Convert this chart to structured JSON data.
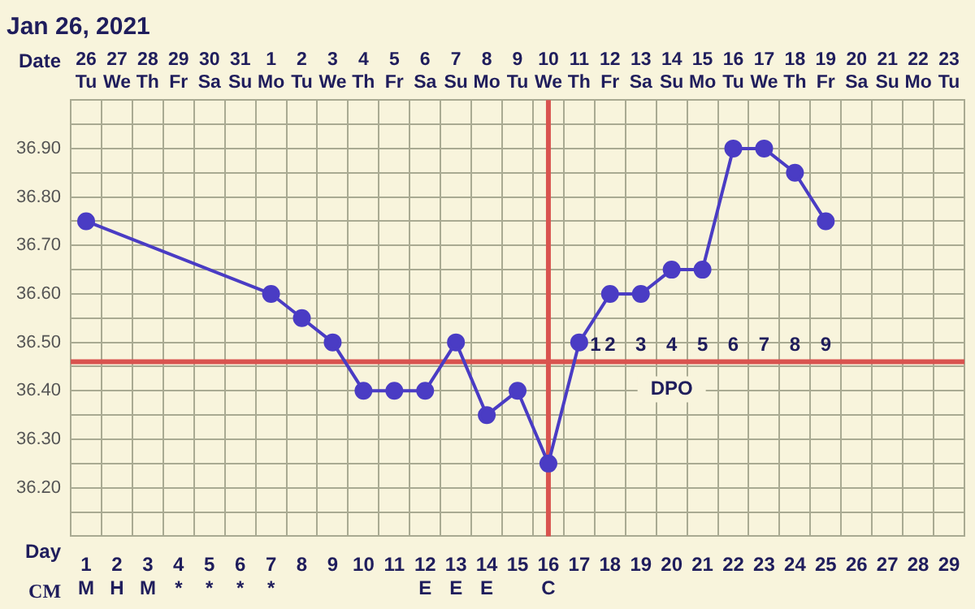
{
  "chart_data": {
    "type": "line",
    "title": "Jan 26, 2021",
    "xlabel": "Date",
    "x2label": "Day",
    "categories": [
      "26\nTu",
      "27\nWe",
      "28\nTh",
      "29\nFr",
      "30\nSa",
      "31\nSu",
      "1\nMo",
      "2\nTu",
      "3\nWe",
      "4\nTh",
      "5\nFr",
      "6\nSa",
      "7\nSu",
      "8\nMo",
      "9\nTu",
      "10\nWe",
      "11\nTh",
      "12\nFr",
      "13\nSa",
      "14\nSu",
      "15\nMo",
      "16\nTu",
      "17\nWe",
      "18\nTh",
      "19\nFr",
      "20\nSa",
      "21\nSu",
      "22\nMo",
      "23\nTu"
    ],
    "series": [
      {
        "color": "#4a3cc4",
        "values": [
          36.75,
          null,
          null,
          null,
          null,
          null,
          36.6,
          36.55,
          36.5,
          36.4,
          36.4,
          36.4,
          36.5,
          36.35,
          36.4,
          36.25,
          36.5,
          36.6,
          36.6,
          36.65,
          36.65,
          36.9,
          36.9,
          36.85,
          36.75,
          null,
          null,
          null,
          null
        ]
      }
    ],
    "ylim": [
      36.1,
      37.0
    ],
    "yticks": [
      {
        "value": 36.1,
        "label": null
      },
      {
        "value": 36.15,
        "label": null
      },
      {
        "value": 36.2,
        "label": "36.20"
      },
      {
        "value": 36.25,
        "label": null
      },
      {
        "value": 36.3,
        "label": "36.30"
      },
      {
        "value": 36.35,
        "label": null
      },
      {
        "value": 36.4,
        "label": "36.40"
      },
      {
        "value": 36.45,
        "label": null
      },
      {
        "value": 36.5,
        "label": "36.50"
      },
      {
        "value": 36.55,
        "label": null
      },
      {
        "value": 36.6,
        "label": "36.60"
      },
      {
        "value": 36.65,
        "label": null
      },
      {
        "value": 36.7,
        "label": "36.70"
      },
      {
        "value": 36.75,
        "label": null
      },
      {
        "value": 36.8,
        "label": "36.80"
      },
      {
        "value": 36.85,
        "label": null
      },
      {
        "value": 36.9,
        "label": "36.90"
      },
      {
        "value": 36.95,
        "label": null
      },
      {
        "value": 37.0,
        "label": null
      }
    ],
    "x2lim": [
      0.5,
      29.5
    ],
    "x2ticks": [
      {
        "value": 1,
        "label": "1\nM"
      },
      {
        "value": 2,
        "label": "2\nH"
      },
      {
        "value": 3,
        "label": "3\nM"
      },
      {
        "value": 4,
        "label": "4\n*"
      },
      {
        "value": 5,
        "label": "5\n*"
      },
      {
        "value": 6,
        "label": "6\n*"
      },
      {
        "value": 7,
        "label": "7\n*"
      },
      8,
      9,
      10,
      11,
      {
        "value": 12,
        "label": "12\nE"
      },
      {
        "value": 13,
        "label": "13\nE"
      },
      {
        "value": 14,
        "label": "14\nE"
      },
      15,
      {
        "value": 16,
        "label": "16\nC"
      },
      17,
      18,
      19,
      20,
      21,
      22,
      23,
      24,
      25,
      26,
      27,
      28,
      29
    ],
    "ref_lines": [
      {
        "axis": "y",
        "value": 36.46,
        "color": "#d9534f"
      },
      {
        "axis": "x",
        "value": "10\nWe",
        "color": "#d9534f"
      }
    ],
    "annotations": [
      "CM",
      {
        "text": "1",
        "x": "11\nTh",
        "y": 36.46
      },
      {
        "text": "2",
        "x": "12\nFr",
        "y": 36.46
      },
      {
        "text": "3",
        "x": "13\nSa",
        "y": 36.46
      },
      {
        "text": "4",
        "x": "14\nSu",
        "y": 36.46
      },
      {
        "text": "5",
        "x": "15\nMo",
        "y": 36.46
      },
      {
        "text": "6",
        "x": "16\nTu",
        "y": 36.46
      },
      {
        "text": "7",
        "x": "17\nWe",
        "y": 36.46
      },
      {
        "text": "8",
        "x": "18\nTh",
        "y": 36.46
      },
      {
        "text": "9",
        "x": "19\nFr",
        "y": 36.46
      },
      {
        "text": "DPO",
        "x": "14\nSu",
        "y": 36.46
      }
    ],
    "grid": true,
    "legend": false,
    "marker": "circle",
    "line_style": "solid"
  }
}
